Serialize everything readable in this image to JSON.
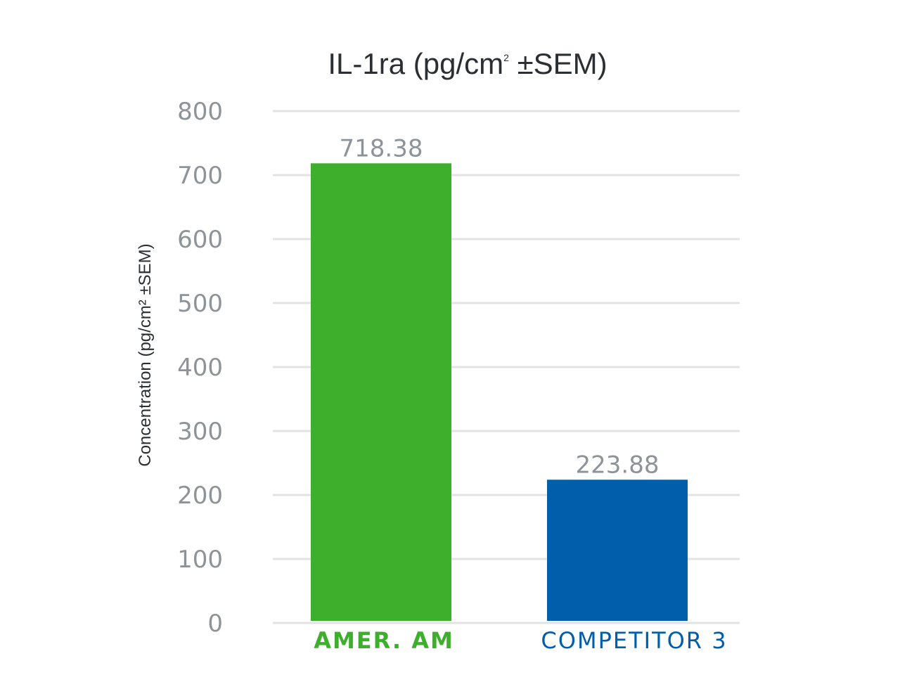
{
  "chart_data": {
    "type": "bar",
    "title": "IL-1ra (pg/cm² ±SEM)",
    "title_parts": {
      "main": "IL-1ra (pg/cm",
      "sup": "2",
      "tail": " ±SEM)"
    },
    "ylabel": "Concentration (pg/cm² ±SEM)",
    "xlabel": "",
    "ylim": [
      0,
      800
    ],
    "yticks": [
      "0",
      "100",
      "200",
      "300",
      "400",
      "500",
      "600",
      "700",
      "800"
    ],
    "grid": true,
    "categories": [
      "AMER. AM",
      "COMPETITOR 3"
    ],
    "values": [
      718.38,
      223.88
    ],
    "data_labels": [
      "718.38",
      "223.88"
    ],
    "colors": [
      "#3daf2c",
      "#005eaa"
    ]
  }
}
